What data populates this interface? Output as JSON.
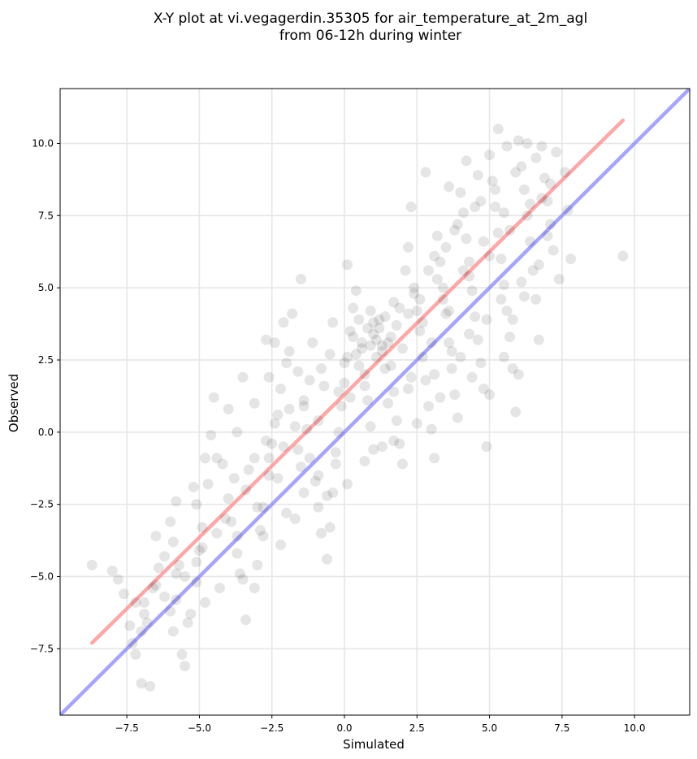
{
  "chart_data": {
    "type": "scatter",
    "title_lines": [
      "X-Y plot at vi.vegagerdin.35305 for air_temperature_at_2m_agl",
      "from 06-12h during winter"
    ],
    "xlabel": "Simulated",
    "ylabel": "Observed",
    "xlim": [
      -9.8,
      11.9
    ],
    "ylim": [
      -9.8,
      11.9
    ],
    "xticks": [
      -7.5,
      -5.0,
      -2.5,
      0.0,
      2.5,
      5.0,
      7.5,
      10.0
    ],
    "yticks": [
      -7.5,
      -5.0,
      -2.5,
      0.0,
      2.5,
      5.0,
      7.5,
      10.0
    ],
    "xtick_labels": [
      "−7.5",
      "−5.0",
      "−2.5",
      "0.0",
      "2.5",
      "5.0",
      "7.5",
      "10.0"
    ],
    "ytick_labels": [
      "−7.5",
      "−5.0",
      "−2.5",
      "0.0",
      "2.5",
      "5.0",
      "7.5",
      "10.0"
    ],
    "grid": true,
    "point_color": "#000000",
    "point_alpha": 0.1,
    "points": [
      [
        -8.7,
        -4.6
      ],
      [
        -8.0,
        -4.8
      ],
      [
        -7.8,
        -5.1
      ],
      [
        -7.6,
        -5.6
      ],
      [
        -7.4,
        -6.7
      ],
      [
        -7.3,
        -7.3
      ],
      [
        -7.2,
        -7.7
      ],
      [
        -7.0,
        -8.7
      ],
      [
        -6.7,
        -8.8
      ],
      [
        -7.0,
        -6.9
      ],
      [
        -6.8,
        -6.6
      ],
      [
        -6.9,
        -5.9
      ],
      [
        -6.6,
        -5.4
      ],
      [
        -6.4,
        -4.7
      ],
      [
        -6.2,
        -4.3
      ],
      [
        -6.5,
        -3.6
      ],
      [
        -6.0,
        -3.1
      ],
      [
        -5.9,
        -3.8
      ],
      [
        -5.7,
        -4.6
      ],
      [
        -5.8,
        -5.8
      ],
      [
        -5.9,
        -6.9
      ],
      [
        -5.6,
        -7.7
      ],
      [
        -5.5,
        -8.1
      ],
      [
        -5.3,
        -6.3
      ],
      [
        -5.1,
        -5.2
      ],
      [
        -5.0,
        -4.1
      ],
      [
        -4.9,
        -3.3
      ],
      [
        -5.1,
        -2.5
      ],
      [
        -4.7,
        -1.8
      ],
      [
        -4.8,
        -0.9
      ],
      [
        -4.6,
        -0.1
      ],
      [
        -4.5,
        1.2
      ],
      [
        -4.2,
        -1.1
      ],
      [
        -4.0,
        -2.3
      ],
      [
        -3.9,
        -3.1
      ],
      [
        -3.7,
        -4.2
      ],
      [
        -3.5,
        -5.1
      ],
      [
        -3.4,
        -6.5
      ],
      [
        -3.1,
        -5.4
      ],
      [
        -3.0,
        -4.6
      ],
      [
        -2.9,
        -3.4
      ],
      [
        -2.8,
        -2.6
      ],
      [
        -2.6,
        -1.5
      ],
      [
        -2.5,
        -0.4
      ],
      [
        -2.3,
        0.6
      ],
      [
        -2.2,
        1.5
      ],
      [
        -2.0,
        2.4
      ],
      [
        -2.4,
        3.1
      ],
      [
        -2.1,
        3.8
      ],
      [
        -1.8,
        4.1
      ],
      [
        -1.5,
        5.3
      ],
      [
        -1.6,
        2.1
      ],
      [
        -1.4,
        1.1
      ],
      [
        -1.3,
        0.1
      ],
      [
        -1.2,
        -0.9
      ],
      [
        -1.0,
        -1.7
      ],
      [
        -0.9,
        -2.6
      ],
      [
        -0.8,
        -3.5
      ],
      [
        -0.6,
        -4.4
      ],
      [
        -0.5,
        -3.3
      ],
      [
        -0.4,
        -2.1
      ],
      [
        -0.3,
        -1.1
      ],
      [
        -0.2,
        0.0
      ],
      [
        -0.1,
        0.9
      ],
      [
        0.0,
        1.7
      ],
      [
        0.1,
        2.6
      ],
      [
        0.2,
        3.5
      ],
      [
        0.3,
        4.3
      ],
      [
        0.1,
        5.8
      ],
      [
        0.4,
        4.9
      ],
      [
        0.5,
        3.9
      ],
      [
        0.6,
        2.9
      ],
      [
        0.7,
        2.0
      ],
      [
        0.8,
        1.1
      ],
      [
        0.9,
        0.2
      ],
      [
        1.0,
        -0.6
      ],
      [
        1.1,
        3.2
      ],
      [
        1.2,
        3.6
      ],
      [
        1.3,
        2.8
      ],
      [
        1.0,
        3.4
      ],
      [
        0.9,
        3.0
      ],
      [
        1.4,
        4.0
      ],
      [
        1.5,
        3.1
      ],
      [
        1.6,
        2.3
      ],
      [
        1.7,
        1.4
      ],
      [
        1.8,
        0.4
      ],
      [
        1.9,
        -0.4
      ],
      [
        2.0,
        -1.1
      ],
      [
        2.1,
        5.6
      ],
      [
        2.2,
        6.4
      ],
      [
        2.3,
        7.8
      ],
      [
        2.4,
        4.8
      ],
      [
        2.5,
        4.2
      ],
      [
        2.6,
        3.5
      ],
      [
        2.7,
        2.6
      ],
      [
        2.8,
        1.8
      ],
      [
        2.9,
        0.9
      ],
      [
        3.0,
        0.1
      ],
      [
        3.1,
        -0.9
      ],
      [
        2.8,
        9.0
      ],
      [
        3.2,
        6.8
      ],
      [
        3.3,
        5.9
      ],
      [
        3.4,
        5.0
      ],
      [
        3.5,
        4.1
      ],
      [
        3.6,
        3.1
      ],
      [
        3.7,
        2.2
      ],
      [
        3.8,
        1.3
      ],
      [
        3.9,
        0.5
      ],
      [
        4.0,
        8.3
      ],
      [
        4.1,
        7.6
      ],
      [
        4.2,
        6.7
      ],
      [
        4.3,
        5.9
      ],
      [
        4.4,
        4.9
      ],
      [
        4.5,
        4.0
      ],
      [
        4.6,
        3.2
      ],
      [
        4.7,
        2.4
      ],
      [
        4.8,
        1.5
      ],
      [
        4.9,
        -0.5
      ],
      [
        5.0,
        9.6
      ],
      [
        5.1,
        8.7
      ],
      [
        5.2,
        7.8
      ],
      [
        5.3,
        6.9
      ],
      [
        5.4,
        6.0
      ],
      [
        5.5,
        5.1
      ],
      [
        5.6,
        4.2
      ],
      [
        5.7,
        3.3
      ],
      [
        5.8,
        2.2
      ],
      [
        5.9,
        0.7
      ],
      [
        6.0,
        10.1
      ],
      [
        6.1,
        9.2
      ],
      [
        6.2,
        8.4
      ],
      [
        6.3,
        7.5
      ],
      [
        6.4,
        6.6
      ],
      [
        6.5,
        5.6
      ],
      [
        6.6,
        4.6
      ],
      [
        6.7,
        3.2
      ],
      [
        6.8,
        9.9
      ],
      [
        6.9,
        8.8
      ],
      [
        7.0,
        8.0
      ],
      [
        7.1,
        7.2
      ],
      [
        7.2,
        6.3
      ],
      [
        7.4,
        5.3
      ],
      [
        7.6,
        9.0
      ],
      [
        7.7,
        7.7
      ],
      [
        7.8,
        6.0
      ],
      [
        9.6,
        6.1
      ],
      [
        5.3,
        10.5
      ],
      [
        4.6,
        8.9
      ],
      [
        3.9,
        7.2
      ],
      [
        3.2,
        5.3
      ],
      [
        2.6,
        4.6
      ],
      [
        1.9,
        4.3
      ],
      [
        1.2,
        3.9
      ],
      [
        0.5,
        2.3
      ],
      [
        -0.2,
        1.4
      ],
      [
        -0.9,
        0.4
      ],
      [
        -1.6,
        -0.6
      ],
      [
        -2.3,
        -1.6
      ],
      [
        -3.0,
        -2.6
      ],
      [
        -3.7,
        -3.6
      ],
      [
        -4.4,
        -3.5
      ],
      [
        -5.1,
        -4.5
      ],
      [
        -5.8,
        -4.9
      ],
      [
        -6.5,
        -5.3
      ],
      [
        -7.2,
        -5.9
      ],
      [
        -3.3,
        -1.3
      ],
      [
        -2.7,
        -0.3
      ],
      [
        -1.9,
        0.8
      ],
      [
        -1.2,
        1.8
      ],
      [
        -0.5,
        2.7
      ],
      [
        0.3,
        3.3
      ],
      [
        1.0,
        3.8
      ],
      [
        1.7,
        4.5
      ],
      [
        2.4,
        5.0
      ],
      [
        3.1,
        6.1
      ],
      [
        3.8,
        7.0
      ],
      [
        4.5,
        7.8
      ],
      [
        5.2,
        8.4
      ],
      [
        5.9,
        9.0
      ],
      [
        6.6,
        9.5
      ],
      [
        1.3,
        3.0
      ],
      [
        0.8,
        3.6
      ],
      [
        1.6,
        3.3
      ],
      [
        1.1,
        2.6
      ],
      [
        0.6,
        3.1
      ],
      [
        1.4,
        2.2
      ],
      [
        0.9,
        4.2
      ],
      [
        1.8,
        3.7
      ],
      [
        2.2,
        4.1
      ],
      [
        0.4,
        2.7
      ],
      [
        -0.8,
        2.2
      ],
      [
        -1.1,
        3.1
      ],
      [
        -0.4,
        3.8
      ],
      [
        0.2,
        1.2
      ],
      [
        -1.7,
        0.2
      ],
      [
        -2.6,
        -0.9
      ],
      [
        -3.4,
        -2.0
      ],
      [
        -4.1,
        -3.0
      ],
      [
        -4.9,
        -4.0
      ],
      [
        -5.5,
        -5.0
      ],
      [
        -6.2,
        -5.7
      ],
      [
        -6.9,
        -6.3
      ],
      [
        -3.8,
        -1.6
      ],
      [
        -3.1,
        -0.9
      ],
      [
        -2.4,
        0.3
      ],
      [
        -1.4,
        0.9
      ],
      [
        -0.7,
        1.6
      ],
      [
        0.0,
        2.4
      ],
      [
        0.7,
        1.6
      ],
      [
        1.5,
        1.0
      ],
      [
        2.3,
        1.9
      ],
      [
        3.0,
        3.1
      ],
      [
        3.6,
        4.2
      ],
      [
        4.3,
        5.4
      ],
      [
        5.0,
        6.1
      ],
      [
        5.7,
        7.0
      ],
      [
        6.4,
        7.9
      ],
      [
        7.1,
        8.6
      ],
      [
        5.5,
        7.6
      ],
      [
        4.8,
        6.6
      ],
      [
        4.1,
        5.6
      ],
      [
        3.4,
        4.6
      ],
      [
        2.7,
        3.8
      ],
      [
        2.0,
        2.9
      ],
      [
        4.0,
        2.6
      ],
      [
        4.4,
        1.9
      ],
      [
        5.0,
        1.3
      ],
      [
        5.5,
        2.6
      ],
      [
        6.0,
        2.0
      ],
      [
        3.3,
        1.2
      ],
      [
        2.5,
        0.3
      ],
      [
        1.7,
        -0.3
      ],
      [
        -2.8,
        -3.6
      ],
      [
        -2.0,
        -2.8
      ],
      [
        -1.4,
        -2.1
      ],
      [
        -0.9,
        -1.5
      ],
      [
        -0.3,
        -0.7
      ],
      [
        -4.3,
        -5.4
      ],
      [
        -4.8,
        -5.9
      ],
      [
        -5.4,
        -6.6
      ],
      [
        -6.0,
        -6.2
      ],
      [
        -3.6,
        -4.9
      ],
      [
        -2.2,
        -3.9
      ],
      [
        -1.7,
        -3.0
      ],
      [
        -0.6,
        -2.2
      ],
      [
        0.1,
        -1.8
      ],
      [
        0.7,
        -1.0
      ],
      [
        1.3,
        -0.5
      ],
      [
        -5.8,
        -2.4
      ],
      [
        -5.2,
        -1.9
      ],
      [
        -4.4,
        -0.9
      ],
      [
        -3.7,
        0.0
      ],
      [
        -3.1,
        1.0
      ],
      [
        -2.6,
        1.9
      ],
      [
        -1.9,
        2.8
      ],
      [
        -2.7,
        3.2
      ],
      [
        -3.5,
        1.9
      ],
      [
        -4.0,
        0.8
      ],
      [
        -2.1,
        -0.5
      ],
      [
        -1.5,
        -1.2
      ],
      [
        3.6,
        8.5
      ],
      [
        4.2,
        9.4
      ],
      [
        5.6,
        9.9
      ],
      [
        6.3,
        10.0
      ],
      [
        6.8,
        8.1
      ],
      [
        7.3,
        9.7
      ],
      [
        4.7,
        8.0
      ],
      [
        3.5,
        6.4
      ],
      [
        2.9,
        5.6
      ],
      [
        6.1,
        5.2
      ],
      [
        6.7,
        5.8
      ],
      [
        7.0,
        6.8
      ],
      [
        5.4,
        4.6
      ],
      [
        4.9,
        3.9
      ],
      [
        4.3,
        3.4
      ],
      [
        3.7,
        2.8
      ],
      [
        3.1,
        2.0
      ],
      [
        2.2,
        1.5
      ],
      [
        5.8,
        3.9
      ],
      [
        6.2,
        4.7
      ]
    ],
    "lines": [
      {
        "color": "#ff8080",
        "alpha": 0.7,
        "width": 4.5,
        "x": [
          -8.7,
          9.6
        ],
        "y": [
          -7.3,
          10.8
        ]
      },
      {
        "color": "#7f7fff",
        "alpha": 0.7,
        "width": 4.5,
        "x": [
          -9.8,
          11.9
        ],
        "y": [
          -9.8,
          11.9
        ]
      }
    ]
  }
}
